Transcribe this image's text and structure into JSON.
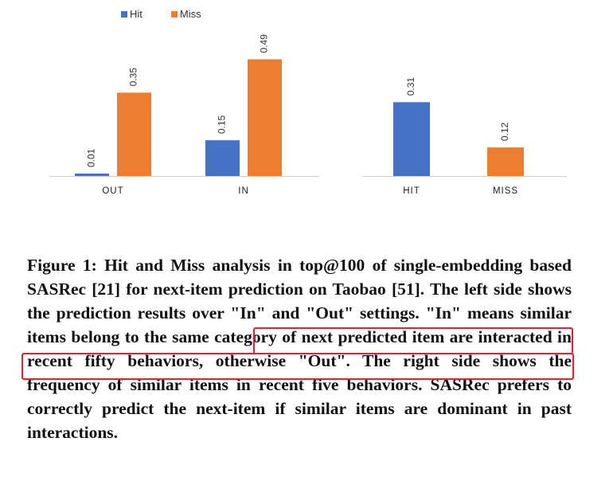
{
  "colors": {
    "hit": "#4472c4",
    "miss": "#ed7d31",
    "highlight": "#e8212b"
  },
  "legend": [
    {
      "label": "Hit",
      "color": "#4472c4"
    },
    {
      "label": "Miss",
      "color": "#ed7d31"
    }
  ],
  "chart_data": [
    {
      "type": "bar",
      "categories": [
        "OUT",
        "IN"
      ],
      "series": [
        {
          "name": "Hit",
          "values": [
            0.01,
            0.15
          ]
        },
        {
          "name": "Miss",
          "values": [
            0.35,
            0.49
          ]
        }
      ],
      "ylim": [
        0,
        0.5
      ],
      "grid": false,
      "legend_position": "top-left"
    },
    {
      "type": "bar",
      "categories": [
        "HIT",
        "MISS"
      ],
      "values": [
        0.31,
        0.12
      ],
      "ylim": [
        0,
        0.5
      ],
      "grid": false
    }
  ],
  "caption": {
    "text": "Figure 1: Hit and Miss analysis in top@100 of single-embedding based SASRec [21] for next-item prediction on Taobao [51]. The left side shows the prediction results over \"In\" and \"Out\" settings. \"In\" means similar items belong to the same category of next predicted item are interacted in recent fifty behaviors, otherwise \"Out\". The right side shows the frequency of similar items in recent five behaviors. SASRec prefers to correctly predict the next-item if similar items are dominant in past interactions."
  }
}
